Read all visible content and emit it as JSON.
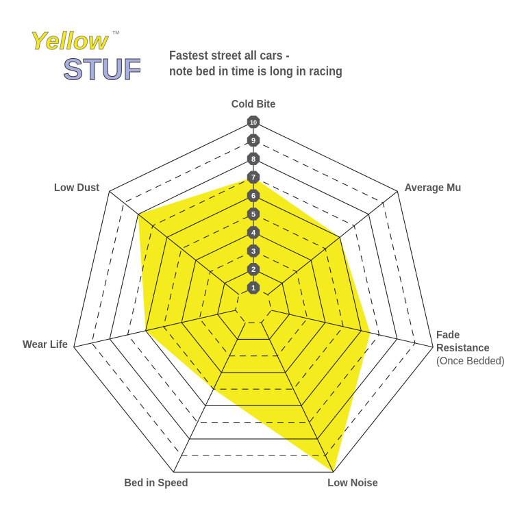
{
  "logo": {
    "line1": "Yellow",
    "line2": "STUFF",
    "tm": "TM"
  },
  "chart_data": {
    "type": "radar",
    "title_lines": [
      "Fastest street all cars -",
      "note bed in time is long in racing"
    ],
    "axes": [
      {
        "label": [
          "Cold Bite"
        ],
        "value": 7
      },
      {
        "label": [
          "Average Mu"
        ],
        "value": 6
      },
      {
        "label": [
          "Fade",
          "Resistance"
        ],
        "sublabel": "(Once Bedded)",
        "value": 6.5
      },
      {
        "label": [
          "Low Noise"
        ],
        "value": 10
      },
      {
        "label": [
          "Bed in Speed"
        ],
        "value": 5
      },
      {
        "label": [
          "Wear Life"
        ],
        "value": 6
      },
      {
        "label": [
          "Low Dust"
        ],
        "value": 8
      }
    ],
    "scale_ticks": [
      1,
      2,
      3,
      4,
      5,
      6,
      7,
      8,
      9,
      10
    ],
    "range": [
      0,
      10
    ],
    "fill_color": "#f5ec1f",
    "grid_color": "#222222",
    "tick_badge_color": "#58585a"
  }
}
